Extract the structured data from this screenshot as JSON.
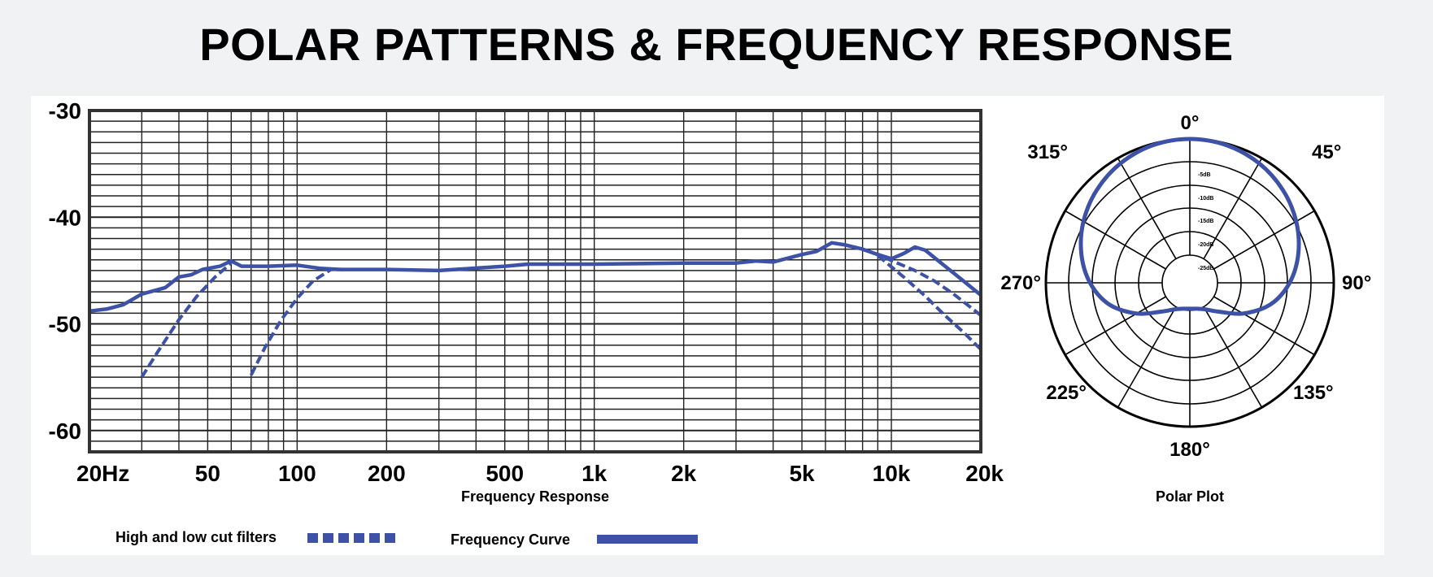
{
  "page": {
    "title": "POLAR PATTERNS & FREQUENCY RESPONSE"
  },
  "chart_data": [
    {
      "type": "line",
      "xlabel": "Frequency Response",
      "xscale": "log",
      "xlim": [
        20,
        20000
      ],
      "ylim": [
        -62,
        -30
      ],
      "grid": true,
      "x_ticks": [
        {
          "value": 20,
          "label": "20Hz"
        },
        {
          "value": 50,
          "label": "50"
        },
        {
          "value": 100,
          "label": "100"
        },
        {
          "value": 200,
          "label": "200"
        },
        {
          "value": 500,
          "label": "500"
        },
        {
          "value": 1000,
          "label": "1k"
        },
        {
          "value": 2000,
          "label": "2k"
        },
        {
          "value": 5000,
          "label": "5k"
        },
        {
          "value": 10000,
          "label": "10k"
        },
        {
          "value": 20000,
          "label": "20k"
        }
      ],
      "y_ticks": [
        {
          "value": -30,
          "label": "-30"
        },
        {
          "value": -40,
          "label": "-40"
        },
        {
          "value": -50,
          "label": "-50"
        },
        {
          "value": -60,
          "label": "-60"
        }
      ],
      "legend": [
        {
          "label": "High and low cut filters",
          "style": "dashed"
        },
        {
          "label": "Frequency Curve",
          "style": "solid"
        }
      ],
      "color": "#3d52a6",
      "series": [
        {
          "id": "frequency-curve",
          "style": "solid",
          "points": [
            [
              20,
              -48.8
            ],
            [
              23,
              -48.6
            ],
            [
              26,
              -48.2
            ],
            [
              30,
              -47.2
            ],
            [
              36,
              -46.6
            ],
            [
              40,
              -45.6
            ],
            [
              44,
              -45.4
            ],
            [
              48,
              -44.9
            ],
            [
              55,
              -44.6
            ],
            [
              60,
              -44.1
            ],
            [
              65,
              -44.6
            ],
            [
              80,
              -44.6
            ],
            [
              100,
              -44.5
            ],
            [
              120,
              -44.8
            ],
            [
              140,
              -44.9
            ],
            [
              200,
              -44.9
            ],
            [
              300,
              -45.0
            ],
            [
              500,
              -44.6
            ],
            [
              600,
              -44.4
            ],
            [
              1000,
              -44.4
            ],
            [
              2000,
              -44.3
            ],
            [
              3000,
              -44.3
            ],
            [
              3500,
              -44.1
            ],
            [
              4000,
              -44.2
            ],
            [
              5000,
              -43.5
            ],
            [
              5600,
              -43.2
            ],
            [
              6300,
              -42.4
            ],
            [
              7000,
              -42.6
            ],
            [
              8000,
              -43.0
            ],
            [
              9000,
              -43.5
            ],
            [
              10000,
              -43.9
            ],
            [
              11000,
              -43.4
            ],
            [
              12000,
              -42.8
            ],
            [
              13000,
              -43.1
            ],
            [
              15000,
              -44.5
            ],
            [
              17000,
              -45.7
            ],
            [
              20000,
              -47.3
            ]
          ]
        },
        {
          "id": "low-cut-filter-1",
          "style": "dashed",
          "points": [
            [
              30,
              -55
            ],
            [
              34,
              -52.6
            ],
            [
              40,
              -49.6
            ],
            [
              46,
              -47.4
            ],
            [
              53,
              -45.6
            ],
            [
              60,
              -44.3
            ]
          ]
        },
        {
          "id": "low-cut-filter-2",
          "style": "dashed",
          "points": [
            [
              70,
              -54.8
            ],
            [
              78,
              -52.2
            ],
            [
              88,
              -49.7
            ],
            [
              100,
              -47.6
            ],
            [
              113,
              -46
            ],
            [
              130,
              -44.9
            ]
          ]
        },
        {
          "id": "high-cut-filter-1",
          "style": "dashed",
          "points": [
            [
              9500,
              -43.8
            ],
            [
              12000,
              -45
            ],
            [
              14000,
              -46
            ],
            [
              16000,
              -47.1
            ],
            [
              18000,
              -48.2
            ],
            [
              20000,
              -49.2
            ]
          ]
        },
        {
          "id": "high-cut-filter-2",
          "style": "dashed",
          "points": [
            [
              9000,
              -43.6
            ],
            [
              11000,
              -45.6
            ],
            [
              13000,
              -47.4
            ],
            [
              15000,
              -49.1
            ],
            [
              17500,
              -50.8
            ],
            [
              20000,
              -52.4
            ]
          ]
        }
      ]
    },
    {
      "type": "polar",
      "xlabel": "Polar Plot",
      "angle_labels": [
        {
          "deg": 0,
          "label": "0°"
        },
        {
          "deg": 45,
          "label": "45°"
        },
        {
          "deg": 90,
          "label": "90°"
        },
        {
          "deg": 135,
          "label": "135°"
        },
        {
          "deg": 180,
          "label": "180°"
        },
        {
          "deg": 225,
          "label": "225°"
        },
        {
          "deg": 270,
          "label": "270°"
        },
        {
          "deg": 315,
          "label": "315°"
        }
      ],
      "ring_labels": [
        "-5dB",
        "-10dB",
        "-15dB",
        "-20dB",
        "-25dB"
      ],
      "rmax_db": 0,
      "rmin_db": -30,
      "pattern": "cardioid",
      "color": "#3d52a6",
      "points": [
        [
          0,
          0
        ],
        [
          15,
          -0.3
        ],
        [
          30,
          -1.2
        ],
        [
          45,
          -2.6
        ],
        [
          60,
          -4.4
        ],
        [
          75,
          -6.6
        ],
        [
          90,
          -9.2
        ],
        [
          105,
          -12.6
        ],
        [
          120,
          -17.2
        ],
        [
          135,
          -21.5
        ],
        [
          150,
          -23.6
        ],
        [
          165,
          -24.4
        ],
        [
          180,
          -24.6
        ],
        [
          195,
          -24.4
        ],
        [
          210,
          -23.6
        ],
        [
          225,
          -21.5
        ],
        [
          240,
          -17.2
        ],
        [
          255,
          -12.6
        ],
        [
          270,
          -9.2
        ],
        [
          285,
          -6.6
        ],
        [
          300,
          -4.4
        ],
        [
          315,
          -2.6
        ],
        [
          330,
          -1.2
        ],
        [
          345,
          -0.3
        ]
      ]
    }
  ]
}
